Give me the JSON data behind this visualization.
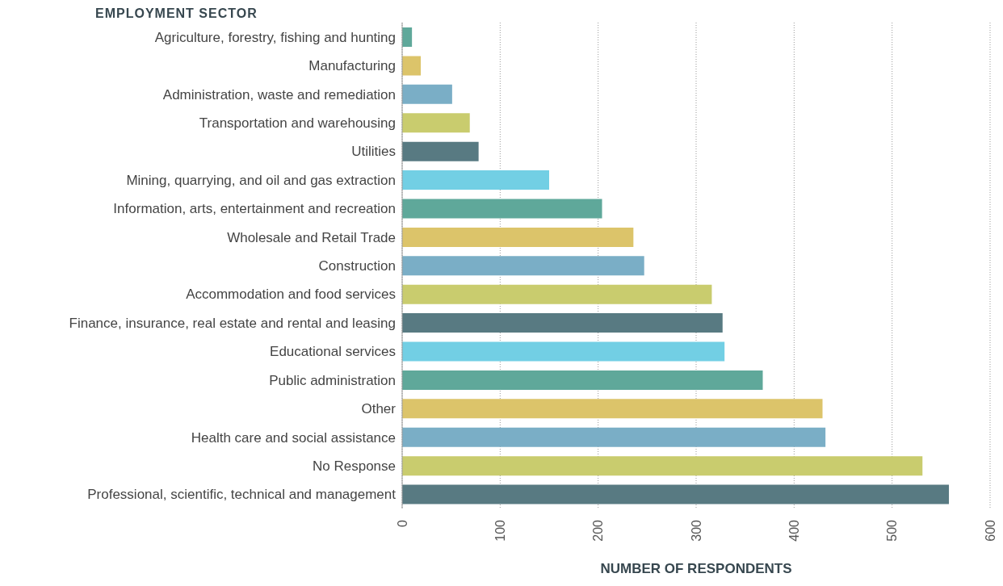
{
  "chart_data": {
    "type": "bar",
    "orientation": "horizontal",
    "ylabel": "EMPLOYMENT SECTOR",
    "xlabel": "NUMBER OF RESPONDENTS",
    "categories": [
      "Agriculture, forestry, fishing and hunting",
      "Manufacturing",
      "Administration, waste and remediation",
      "Transportation and warehousing",
      "Utilities",
      "Mining, quarrying, and oil and gas extraction",
      "Information, arts, entertainment and recreation",
      "Wholesale and Retail Trade",
      "Construction",
      "Accommodation and food services",
      "Finance, insurance, real estate and rental and leasing",
      "Educational services",
      "Public administration",
      "Other",
      "Health care and social assistance",
      "No Response",
      "Professional, scientific, technical and management"
    ],
    "values": [
      10,
      19,
      51,
      69,
      78,
      150,
      204,
      236,
      247,
      316,
      327,
      329,
      368,
      429,
      432,
      531,
      558
    ],
    "colors": [
      "#5fa89a",
      "#dcc46a",
      "#7aaec6",
      "#c9cc6e",
      "#587a82",
      "#72cfe4",
      "#5fa89a",
      "#dcc46a",
      "#7aaec6",
      "#c9cc6e",
      "#587a82",
      "#72cfe4",
      "#5fa89a",
      "#dcc46a",
      "#7aaec6",
      "#c9cc6e",
      "#587a82"
    ],
    "xlim": [
      0,
      600
    ],
    "xticks": [
      0,
      100,
      200,
      300,
      400,
      500,
      600
    ],
    "grid": "x"
  }
}
